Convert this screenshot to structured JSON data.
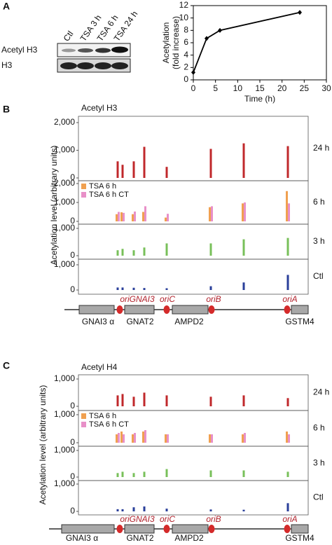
{
  "panel_labels": [
    "A",
    "B",
    "C"
  ],
  "blot": {
    "lanes": [
      "Ctl",
      "TSA 3 h",
      "TSA 6 h",
      "TSA 24 h"
    ],
    "rows": [
      "Acetyl H3",
      "H3"
    ]
  },
  "chart_data": [
    {
      "type": "line",
      "x": [
        0,
        3,
        6,
        24
      ],
      "values": [
        1.2,
        6.7,
        8.0,
        10.9
      ],
      "color": "#000000",
      "x_label": "Time (h)",
      "y_label": [
        "Acetylation",
        "(fold increase)"
      ],
      "xlim": [
        0,
        30
      ],
      "xticks": [
        0,
        5,
        10,
        15,
        20,
        25,
        30
      ],
      "ylim": [
        0,
        12
      ],
      "yticks": [
        0,
        2,
        4,
        6,
        8,
        10,
        12
      ]
    },
    {
      "type": "bar",
      "title": "Acetyl H3",
      "y_label": "Acetylation level (arbitrary units)",
      "label": "24 h",
      "categories": [
        null,
        null,
        null,
        null,
        null,
        null,
        null,
        null
      ],
      "values": [
        600,
        475,
        600,
        1125,
        400,
        1050,
        1250,
        1150
      ],
      "color": "#c0282b",
      "ylim": [
        0,
        2000
      ],
      "yticks": [
        0,
        {
          "value": 1000,
          "label": "1,000"
        },
        {
          "value": 2000,
          "label": "2,000"
        }
      ]
    },
    {
      "type": "bar",
      "label": "6 h",
      "categories": [
        null,
        null,
        null,
        null,
        null,
        null,
        null,
        null
      ],
      "series": [
        {
          "name": "TSA 6 h",
          "color": "#f0a050",
          "values": [
            380,
            480,
            380,
            500,
            200,
            750,
            950,
            1600
          ]
        },
        {
          "name": "TSA 6 h CT",
          "color": "#e890c8",
          "values": [
            500,
            450,
            520,
            800,
            400,
            800,
            1000,
            950
          ]
        }
      ],
      "ylim": [
        0,
        2000
      ],
      "yticks": [
        0,
        {
          "value": 1000,
          "label": "1,000"
        },
        {
          "value": 2000,
          "label": "2,000"
        }
      ]
    },
    {
      "type": "bar",
      "label": "3 h",
      "categories": [
        null,
        null,
        null,
        null,
        null,
        null,
        null,
        null
      ],
      "values": [
        200,
        250,
        200,
        300,
        450,
        450,
        600,
        650
      ],
      "color": "#78c05a",
      "ylim": [
        0,
        1000
      ],
      "yticks": [
        0,
        {
          "value": 1000,
          "label": "1,000"
        }
      ]
    },
    {
      "type": "bar",
      "label": "Ctl",
      "categories": [
        null,
        null,
        null,
        null,
        null,
        null,
        null,
        null
      ],
      "values": [
        100,
        100,
        90,
        80,
        70,
        150,
        300,
        600
      ],
      "color": "#2a3f9a",
      "ylim": [
        0,
        1000
      ],
      "yticks": [
        0,
        {
          "value": 1000,
          "label": "1,000"
        }
      ]
    },
    {
      "type": "bar",
      "title": "Acetyl H4",
      "y_label": "Acetylation level (arbitrary units)",
      "label": "24 h",
      "categories": [
        null,
        null,
        null,
        null,
        null,
        null,
        null,
        null
      ],
      "values": [
        400,
        450,
        350,
        500,
        400,
        350,
        400,
        300
      ],
      "color": "#c0282b",
      "ylim": [
        0,
        1000
      ],
      "yticks": [
        0,
        {
          "value": 1000,
          "label": "1,000"
        }
      ]
    },
    {
      "type": "bar",
      "label": "6 h",
      "categories": [
        null,
        null,
        null,
        null,
        null,
        null,
        null,
        null
      ],
      "series": [
        {
          "name": "TSA 6 h",
          "color": "#f0a050",
          "values": [
            300,
            400,
            300,
            400,
            300,
            300,
            300,
            400
          ]
        },
        {
          "name": "TSA 6 h CT",
          "color": "#e890c8",
          "values": [
            350,
            300,
            350,
            450,
            300,
            300,
            350,
            300
          ]
        }
      ],
      "ylim": [
        0,
        1000
      ],
      "yticks": [
        0,
        {
          "value": 1000,
          "label": "1,000"
        }
      ]
    },
    {
      "type": "bar",
      "label": "3 h",
      "categories": [
        null,
        null,
        null,
        null,
        null,
        null,
        null,
        null
      ],
      "values": [
        150,
        200,
        150,
        200,
        300,
        250,
        250,
        200
      ],
      "color": "#78c05a",
      "ylim": [
        0,
        1000
      ],
      "yticks": [
        0,
        {
          "value": 1000,
          "label": "1,000"
        }
      ]
    },
    {
      "type": "bar",
      "label": "Ctl",
      "categories": [
        null,
        null,
        null,
        null,
        null,
        null,
        null,
        null
      ],
      "values": [
        80,
        80,
        150,
        180,
        100,
        70,
        60,
        300
      ],
      "color": "#2a3f9a",
      "ylim": [
        0,
        1000
      ],
      "yticks": [
        0,
        {
          "value": 1000,
          "label": "1,000"
        }
      ]
    }
  ],
  "gene_maps": [
    {
      "genes": [
        "GNAI3 α",
        "GNAT2",
        "AMPD2",
        "GSTM4"
      ],
      "origins": [
        "oriGNAI3",
        "oriC",
        "oriB",
        "oriA"
      ]
    },
    {
      "genes": [
        "GNAI3 α",
        "GNAT2",
        "AMPD2",
        "GSTM4"
      ],
      "origins": [
        "oriGNAI3",
        "oriC",
        "oriB",
        "oriA"
      ]
    }
  ]
}
